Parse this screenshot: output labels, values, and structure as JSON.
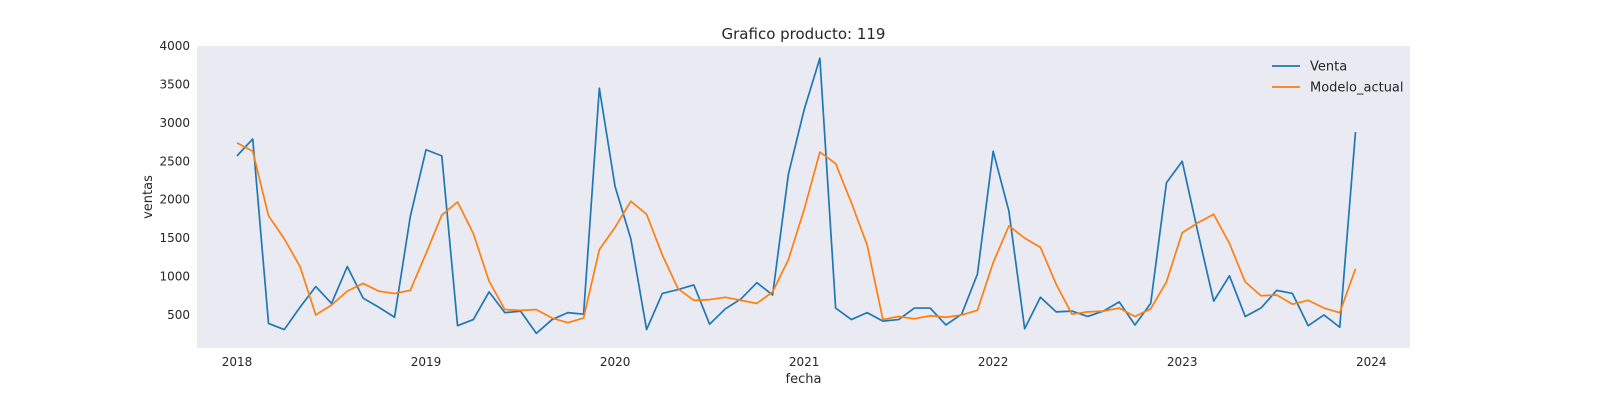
{
  "chart_data": {
    "type": "line",
    "title": "Grafico producto: 119",
    "xlabel": "fecha",
    "ylabel": "ventas",
    "x_ticks": [
      "2018",
      "2019",
      "2020",
      "2021",
      "2022",
      "2023",
      "2024"
    ],
    "y_ticks": [
      "500",
      "1000",
      "1500",
      "2000",
      "2500",
      "3000",
      "3500",
      "4000"
    ],
    "ylim": [
      70,
      4000
    ],
    "xlim": [
      "2017-10-15",
      "2024-03-15"
    ],
    "x": [
      "2018-01",
      "2018-02",
      "2018-03",
      "2018-04",
      "2018-05",
      "2018-06",
      "2018-07",
      "2018-08",
      "2018-09",
      "2018-10",
      "2018-11",
      "2018-12",
      "2019-01",
      "2019-02",
      "2019-03",
      "2019-04",
      "2019-05",
      "2019-06",
      "2019-07",
      "2019-08",
      "2019-09",
      "2019-10",
      "2019-11",
      "2019-12",
      "2020-01",
      "2020-02",
      "2020-03",
      "2020-04",
      "2020-05",
      "2020-06",
      "2020-07",
      "2020-08",
      "2020-09",
      "2020-10",
      "2020-11",
      "2020-12",
      "2021-01",
      "2021-02",
      "2021-03",
      "2021-04",
      "2021-05",
      "2021-06",
      "2021-07",
      "2021-08",
      "2021-09",
      "2021-10",
      "2021-11",
      "2021-12",
      "2022-01",
      "2022-02",
      "2022-03",
      "2022-04",
      "2022-05",
      "2022-06",
      "2022-07",
      "2022-08",
      "2022-09",
      "2022-10",
      "2022-11",
      "2022-12",
      "2023-01",
      "2023-02",
      "2023-03",
      "2023-04",
      "2023-05",
      "2023-06",
      "2023-07",
      "2023-08",
      "2023-09",
      "2023-10",
      "2023-11",
      "2023-12"
    ],
    "series": [
      {
        "name": "Venta",
        "color": "#1f77b4",
        "values": [
          2570,
          2790,
          390,
          310,
          600,
          870,
          650,
          1130,
          720,
          600,
          470,
          1780,
          2650,
          2570,
          360,
          440,
          800,
          530,
          550,
          260,
          440,
          530,
          510,
          3450,
          2170,
          1490,
          310,
          780,
          830,
          890,
          380,
          580,
          710,
          920,
          760,
          2330,
          3170,
          3840,
          590,
          440,
          530,
          420,
          440,
          590,
          590,
          370,
          510,
          1030,
          2630,
          1850,
          320,
          730,
          540,
          550,
          480,
          550,
          670,
          370,
          650,
          2220,
          2500,
          1570,
          680,
          1010,
          480,
          590,
          820,
          780,
          360,
          500,
          340,
          2880
        ]
      },
      {
        "name": "Modelo_actual",
        "color": "#ff7f0e",
        "values": [
          2740,
          2630,
          1790,
          1490,
          1130,
          500,
          630,
          810,
          910,
          810,
          780,
          820,
          1300,
          1800,
          1970,
          1560,
          940,
          570,
          560,
          570,
          460,
          400,
          460,
          1350,
          1640,
          1980,
          1810,
          1280,
          840,
          690,
          700,
          730,
          690,
          650,
          800,
          1220,
          1870,
          2620,
          2470,
          1960,
          1410,
          440,
          480,
          450,
          490,
          470,
          500,
          560,
          1180,
          1660,
          1500,
          1380,
          900,
          510,
          540,
          550,
          590,
          480,
          580,
          930,
          1570,
          1700,
          1810,
          1430,
          930,
          750,
          760,
          640,
          690,
          590,
          530,
          1100
        ]
      }
    ],
    "grid": false,
    "legend_position": "top-right",
    "background_color": "#eaeaf2"
  }
}
